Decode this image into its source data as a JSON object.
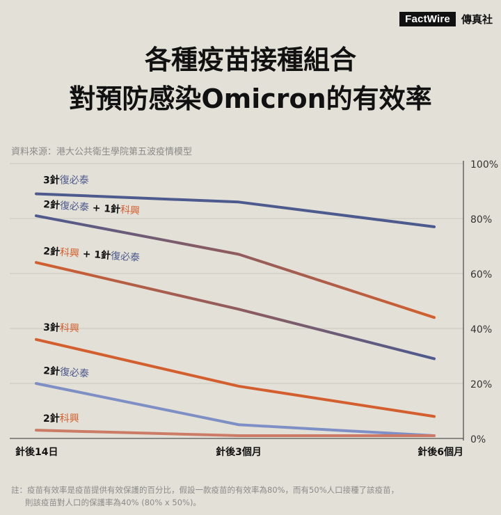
{
  "brand": {
    "logo": "FactWire",
    "name_cn": "傳真社"
  },
  "title": {
    "line1": "各種疫苗接種組合",
    "line2": "對預防感染Omicron的有效率"
  },
  "source": "資料來源：港大公共衛生學院第五波疫情模型",
  "note": {
    "line1": "註：疫苗有效率是疫苗提供有效保護的百分比，假設一款疫苗的有效率為80%，而有50%人口接種了該疫苗，",
    "line2": "則該疫苗對人口的保護率為40% (80% x 50%)。"
  },
  "colors": {
    "biontech": "#4c5a8e",
    "sinovac": "#d35f2e",
    "biontech_light": "#7d8fc4",
    "sinovac_light": "#cc7c66",
    "grid": "#c9c6bd"
  },
  "chart_data": {
    "type": "line",
    "categories": [
      "針後14日",
      "針後3個月",
      "針後6個月"
    ],
    "ylim": [
      0,
      100
    ],
    "yticks": [
      "0%",
      "20%",
      "40%",
      "60%",
      "80%",
      "100%"
    ],
    "series": [
      {
        "label_parts": [
          {
            "text": "3針",
            "c": "dark"
          },
          {
            "text": "復必泰",
            "c": "biontech"
          }
        ],
        "color_start": "#4c5a8e",
        "color_end": "#4c5a8e",
        "values": [
          89,
          86,
          77
        ]
      },
      {
        "label_parts": [
          {
            "text": "2針",
            "c": "dark"
          },
          {
            "text": "復必泰",
            "c": "biontech"
          },
          {
            "text": " + 1針",
            "c": "dark"
          },
          {
            "text": "科興",
            "c": "sinovac"
          }
        ],
        "color_start": "#4c5a8e",
        "color_end": "#d35f2e",
        "values": [
          81,
          67,
          44
        ]
      },
      {
        "label_parts": [
          {
            "text": "2針",
            "c": "dark"
          },
          {
            "text": "科興",
            "c": "sinovac"
          },
          {
            "text": " + 1針",
            "c": "dark"
          },
          {
            "text": "復必泰",
            "c": "biontech"
          }
        ],
        "color_start": "#d35f2e",
        "color_end": "#4c5a8e",
        "values": [
          64,
          47,
          29
        ]
      },
      {
        "label_parts": [
          {
            "text": "3針",
            "c": "dark"
          },
          {
            "text": "科興",
            "c": "sinovac"
          }
        ],
        "color_start": "#d35f2e",
        "color_end": "#d35f2e",
        "values": [
          36,
          19,
          8
        ]
      },
      {
        "label_parts": [
          {
            "text": "2針",
            "c": "dark"
          },
          {
            "text": "復必泰",
            "c": "biontech"
          }
        ],
        "color_start": "#7d8fc4",
        "color_end": "#7d8fc4",
        "values": [
          20,
          5,
          1
        ]
      },
      {
        "label_parts": [
          {
            "text": "2針",
            "c": "dark"
          },
          {
            "text": "科興",
            "c": "sinovac"
          }
        ],
        "color_start": "#cc7c66",
        "color_end": "#cc7c66",
        "values": [
          3,
          1,
          1
        ]
      }
    ]
  }
}
